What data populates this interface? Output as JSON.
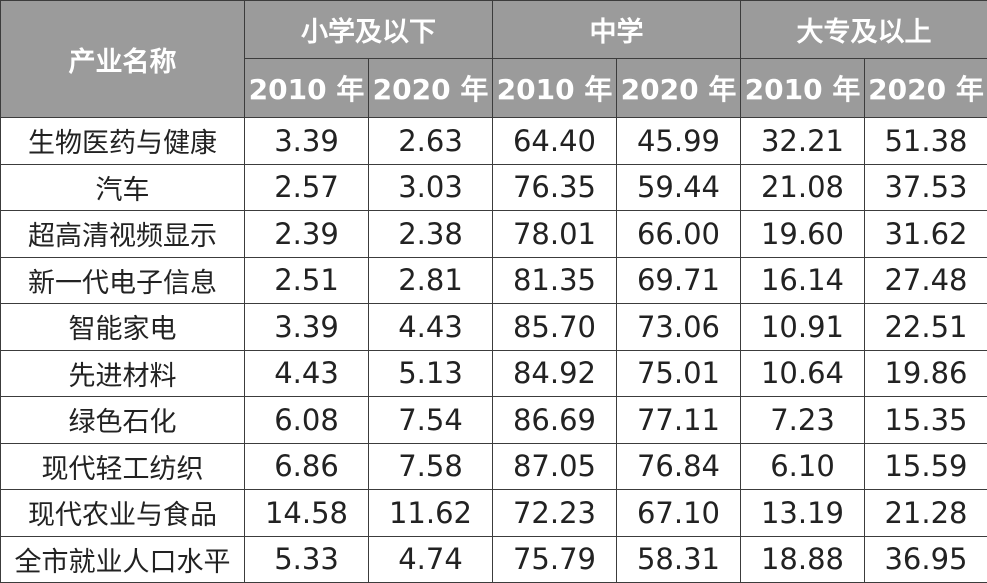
{
  "table": {
    "header": {
      "industry_label": "产业名称",
      "groups": [
        "小学及以下",
        "中学",
        "大专及以上"
      ],
      "years": [
        "2010 年",
        "2020 年",
        "2010 年",
        "2020 年",
        "2010 年",
        "2020 年"
      ]
    },
    "rows": [
      {
        "name": "生物医药与健康",
        "values": [
          "3.39",
          "2.63",
          "64.40",
          "45.99",
          "32.21",
          "51.38"
        ]
      },
      {
        "name": "汽车",
        "values": [
          "2.57",
          "3.03",
          "76.35",
          "59.44",
          "21.08",
          "37.53"
        ]
      },
      {
        "name": "超高清视频显示",
        "values": [
          "2.39",
          "2.38",
          "78.01",
          "66.00",
          "19.60",
          "31.62"
        ]
      },
      {
        "name": "新一代电子信息",
        "values": [
          "2.51",
          "2.81",
          "81.35",
          "69.71",
          "16.14",
          "27.48"
        ]
      },
      {
        "name": "智能家电",
        "values": [
          "3.39",
          "4.43",
          "85.70",
          "73.06",
          "10.91",
          "22.51"
        ]
      },
      {
        "name": "先进材料",
        "values": [
          "4.43",
          "5.13",
          "84.92",
          "75.01",
          "10.64",
          "19.86"
        ]
      },
      {
        "name": "绿色石化",
        "values": [
          "6.08",
          "7.54",
          "86.69",
          "77.11",
          "7.23",
          "15.35"
        ]
      },
      {
        "name": "现代轻工纺织",
        "values": [
          "6.86",
          "7.58",
          "87.05",
          "76.84",
          "6.10",
          "15.59"
        ]
      },
      {
        "name": "现代农业与食品",
        "values": [
          "14.58",
          "11.62",
          "72.23",
          "67.10",
          "13.19",
          "21.28"
        ]
      },
      {
        "name": "全市就业人口水平",
        "values": [
          "5.33",
          "4.74",
          "75.79",
          "58.31",
          "18.88",
          "36.95"
        ]
      }
    ]
  },
  "colors": {
    "header_background": "#9b9b9b",
    "header_text": "#ffffff",
    "body_text": "#222222",
    "border": "#3c3c3c"
  }
}
